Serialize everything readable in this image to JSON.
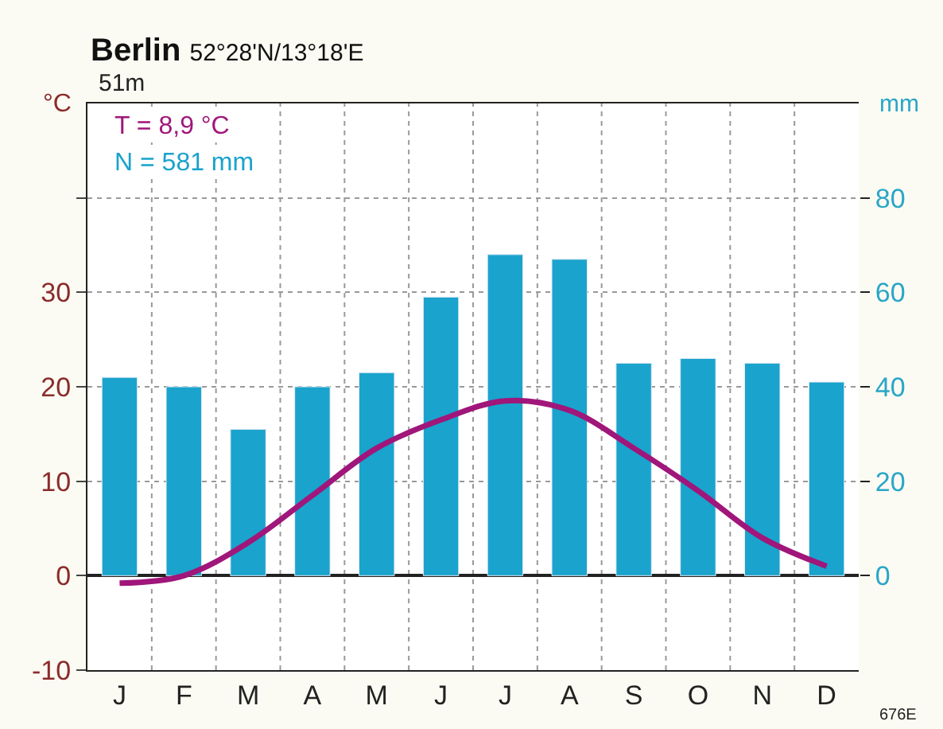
{
  "chart_data": {
    "type": "bar",
    "title": "Berlin",
    "subtitle": "52°28'N/13°18'E",
    "ylabel": "°C",
    "y2label": "mm",
    "annotations": [
      "51m",
      "T = 8,9 °C",
      "N = 581 mm",
      "676E"
    ],
    "categories": [
      "J",
      "F",
      "M",
      "A",
      "M",
      "J",
      "J",
      "A",
      "S",
      "O",
      "N",
      "D"
    ],
    "series": [
      {
        "axis": "y2",
        "color": "#1aa3cc",
        "values": [
          42,
          40,
          31,
          40,
          43,
          59,
          68,
          67,
          45,
          46,
          45,
          41
        ]
      },
      {
        "type": "line",
        "axis": "y",
        "color": "#a0167a",
        "values": [
          -0.8,
          0.0,
          3.5,
          8.5,
          13.5,
          16.5,
          18.5,
          17.5,
          13.5,
          9.0,
          4.0,
          1.0
        ]
      }
    ],
    "ylim": [
      -10,
      50
    ],
    "yticks": [
      -10,
      0,
      10,
      20,
      30,
      {
        "value": 40,
        "label": null
      }
    ],
    "y2lim": [
      -20,
      100
    ],
    "y2ticks": [
      0,
      20,
      40,
      60,
      80
    ],
    "grid": true,
    "legend": false,
    "marker": "none",
    "line_style": "solid"
  }
}
